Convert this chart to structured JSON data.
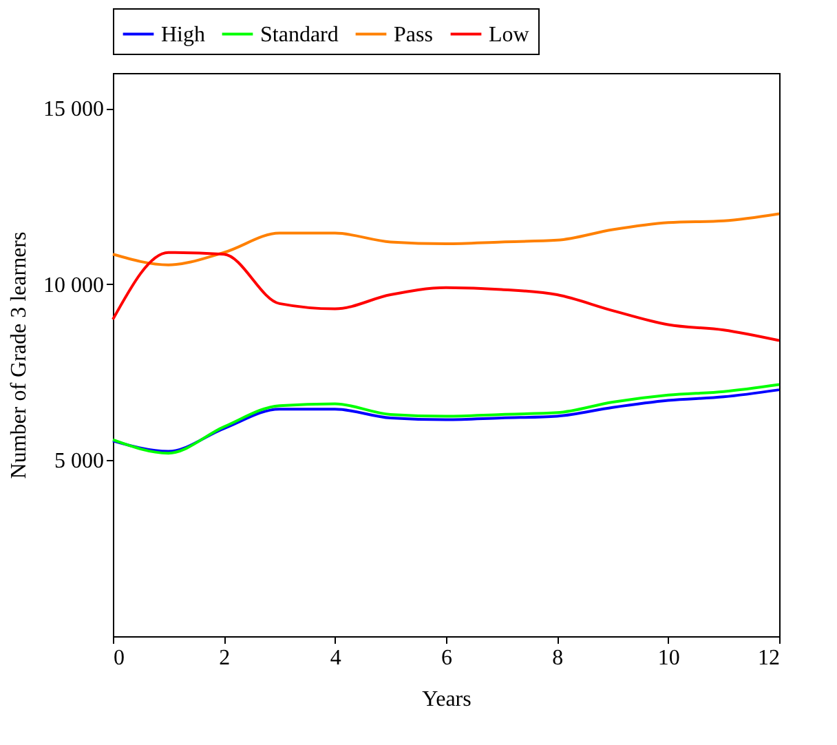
{
  "chart_data": {
    "type": "line",
    "xlabel": "Years",
    "ylabel": "Number of Grade 3 learners",
    "x": [
      0,
      1,
      2,
      3,
      4,
      5,
      6,
      7,
      8,
      9,
      10,
      11,
      12
    ],
    "xlim": [
      0,
      12
    ],
    "xticks": [
      0,
      2,
      4,
      6,
      8,
      10,
      12
    ],
    "ylim": [
      0,
      16000
    ],
    "yticks": [
      {
        "value": 5000,
        "label": "5 000"
      },
      {
        "value": 10000,
        "label": "10 000"
      },
      {
        "value": 15000,
        "label": "15 000"
      }
    ],
    "grid": false,
    "legend": "top",
    "marker": "none",
    "line_style": "solid",
    "series": [
      {
        "name": "High",
        "color": "#0000ff",
        "values": [
          5550,
          5250,
          5900,
          6450,
          6450,
          6200,
          6150,
          6200,
          6250,
          6500,
          6700,
          6800,
          7000
        ]
      },
      {
        "name": "Standard",
        "color": "#00ff00",
        "values": [
          5580,
          5200,
          5950,
          6550,
          6600,
          6300,
          6250,
          6300,
          6350,
          6650,
          6850,
          6950,
          7150
        ]
      },
      {
        "name": "Pass",
        "color": "#ff8000",
        "values": [
          10850,
          10550,
          10900,
          11450,
          11450,
          11200,
          11150,
          11200,
          11250,
          11550,
          11750,
          11800,
          12000
        ]
      },
      {
        "name": "Low",
        "color": "#ff0000",
        "values": [
          9000,
          10900,
          10850,
          9450,
          9300,
          9700,
          9900,
          9850,
          9700,
          9250,
          8850,
          8700,
          8400
        ]
      }
    ]
  }
}
